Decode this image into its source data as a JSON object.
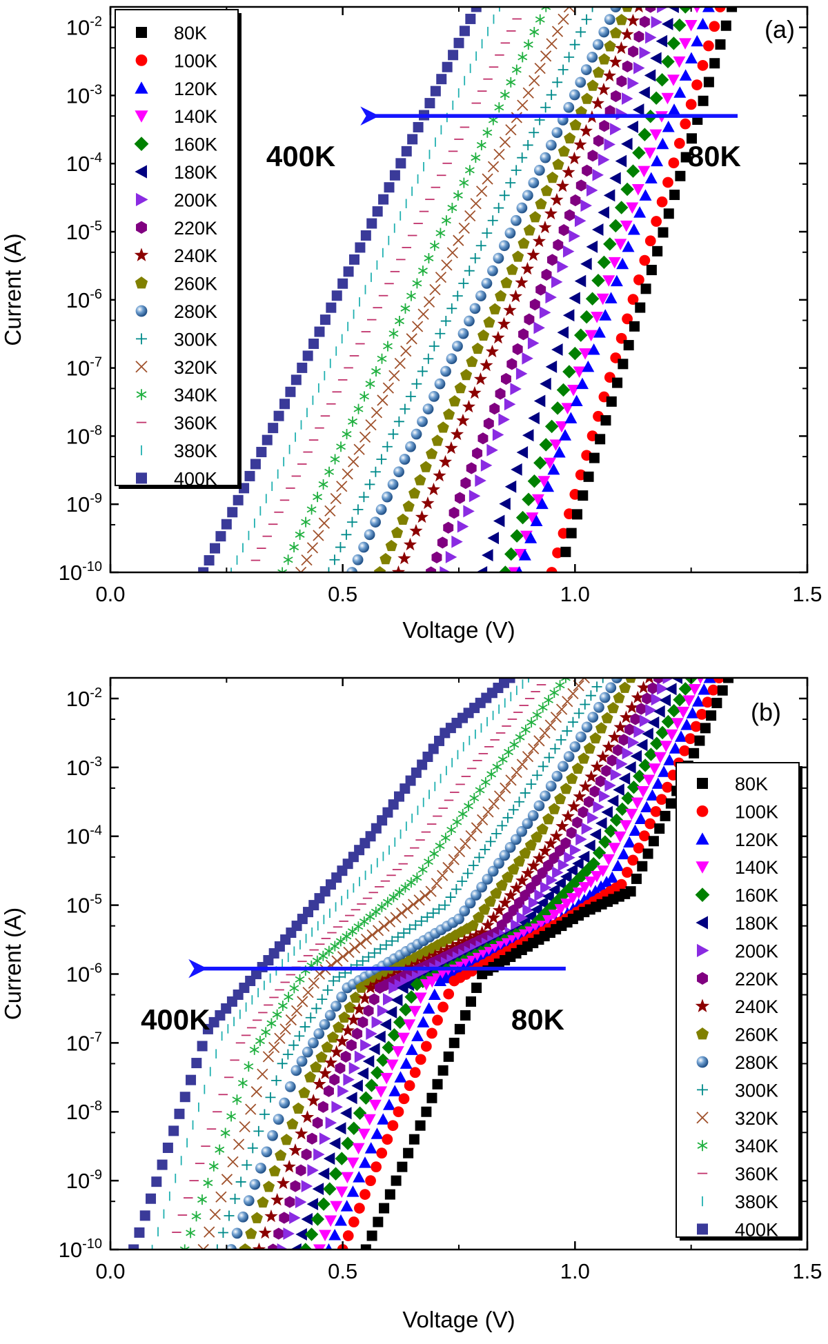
{
  "figure": {
    "legend_entries": [
      "80K",
      "100K",
      "120K",
      "140K",
      "160K",
      "180K",
      "200K",
      "220K",
      "240K",
      "260K",
      "280K",
      "300K",
      "320K",
      "340K",
      "360K",
      "380K",
      "400K"
    ]
  },
  "series_styles": [
    {
      "name": "80K",
      "marker": "square",
      "color": "#000000"
    },
    {
      "name": "100K",
      "marker": "circle",
      "color": "#ff0000"
    },
    {
      "name": "120K",
      "marker": "triangle-up",
      "color": "#0000ff"
    },
    {
      "name": "140K",
      "marker": "triangle-down",
      "color": "#ff00ff"
    },
    {
      "name": "160K",
      "marker": "diamond",
      "color": "#008000"
    },
    {
      "name": "180K",
      "marker": "triangle-left",
      "color": "#000080"
    },
    {
      "name": "200K",
      "marker": "triangle-right",
      "color": "#8a2be2"
    },
    {
      "name": "220K",
      "marker": "hexagon",
      "color": "#800080"
    },
    {
      "name": "240K",
      "marker": "star",
      "color": "#8b0000"
    },
    {
      "name": "260K",
      "marker": "pentagon",
      "color": "#808000"
    },
    {
      "name": "280K",
      "marker": "sphere",
      "color": "#4a7ab0"
    },
    {
      "name": "300K",
      "marker": "plus",
      "color": "#008b8b"
    },
    {
      "name": "320K",
      "marker": "cross",
      "color": "#a0522d"
    },
    {
      "name": "340K",
      "marker": "asterisk",
      "color": "#20b040"
    },
    {
      "name": "360K",
      "marker": "hbar",
      "color": "#c0306a"
    },
    {
      "name": "380K",
      "marker": "vbar",
      "color": "#20b0b0"
    },
    {
      "name": "400K",
      "marker": "square",
      "color": "#3a3a99"
    }
  ],
  "chart_data": [
    {
      "type": "scatter",
      "panel_label": "(a)",
      "xlabel": "Voltage (V)",
      "ylabel": "Current (A)",
      "xlim": [
        0.0,
        1.5
      ],
      "ylim_log10": [
        -10,
        -1.7
      ],
      "y_scale": "log",
      "x_ticks": [
        "0.0",
        "0.5",
        "1.0",
        "1.5"
      ],
      "y_tick_exponents": [
        "-10",
        "-9",
        "-8",
        "-7",
        "-6",
        "-5",
        "-4",
        "-3",
        "-2"
      ],
      "legend_position": "top-left",
      "arrow": {
        "from_v": 1.35,
        "to_v": 0.55,
        "current": 0.0005
      },
      "annotations": [
        {
          "text": "400K",
          "v": 0.41,
          "current": 0.00013
        },
        {
          "text": "80K",
          "v": 1.3,
          "current": 0.00013
        }
      ],
      "series": [
        {
          "name": "80K",
          "x": [
            0.98,
            1.3375
          ],
          "log10_current": [
            -9.7,
            -1.7
          ]
        },
        {
          "name": "100K",
          "x": [
            0.95,
            1.3125
          ],
          "log10_current": [
            -10.0,
            -1.7
          ]
        },
        {
          "name": "120K",
          "x": [
            0.88,
            1.2875
          ],
          "log10_current": [
            -10.0,
            -1.7
          ]
        },
        {
          "name": "140K",
          "x": [
            0.87,
            1.2625
          ],
          "log10_current": [
            -10.0,
            -1.7
          ]
        },
        {
          "name": "160K",
          "x": [
            0.85,
            1.2375
          ],
          "log10_current": [
            -10.0,
            -1.7
          ]
        },
        {
          "name": "180K",
          "x": [
            0.8,
            1.2125
          ],
          "log10_current": [
            -10.0,
            -1.7
          ]
        },
        {
          "name": "200K",
          "x": [
            0.72,
            1.1875
          ],
          "log10_current": [
            -10.0,
            -1.7
          ]
        },
        {
          "name": "220K",
          "x": [
            0.69,
            1.1625
          ],
          "log10_current": [
            -10.0,
            -1.7
          ]
        },
        {
          "name": "240K",
          "x": [
            0.62,
            1.1375
          ],
          "log10_current": [
            -10.0,
            -1.7
          ]
        },
        {
          "name": "260K",
          "x": [
            0.58,
            1.1125
          ],
          "log10_current": [
            -10.0,
            -1.7
          ]
        },
        {
          "name": "280K",
          "x": [
            0.52,
            1.0875
          ],
          "log10_current": [
            -10.0,
            -1.7
          ]
        },
        {
          "name": "300K",
          "x": [
            0.47,
            1.0375
          ],
          "log10_current": [
            -10.0,
            -1.7
          ]
        },
        {
          "name": "320K",
          "x": [
            0.41,
            0.9875
          ],
          "log10_current": [
            -10.0,
            -1.7
          ]
        },
        {
          "name": "340K",
          "x": [
            0.37,
            0.9375
          ],
          "log10_current": [
            -10.0,
            -1.7
          ]
        },
        {
          "name": "360K",
          "x": [
            0.3,
            0.8875
          ],
          "log10_current": [
            -10.0,
            -1.7
          ]
        },
        {
          "name": "380K",
          "x": [
            0.26,
            0.8375
          ],
          "log10_current": [
            -10.0,
            -1.7
          ]
        },
        {
          "name": "400K",
          "x": [
            0.2,
            0.7875
          ],
          "log10_current": [
            -10.0,
            -1.7
          ]
        }
      ]
    },
    {
      "type": "scatter",
      "panel_label": "(b)",
      "xlabel": "Voltage (V)",
      "ylabel": "Current (A)",
      "xlim": [
        0.0,
        1.5
      ],
      "ylim_log10": [
        -10,
        -1.7
      ],
      "y_scale": "log",
      "x_ticks": [
        "0.0",
        "0.5",
        "1.0",
        "1.5"
      ],
      "y_tick_exponents": [
        "-10",
        "-9",
        "-8",
        "-7",
        "-6",
        "-5",
        "-4",
        "-3",
        "-2"
      ],
      "legend_position": "right",
      "arrow": {
        "from_v": 0.98,
        "to_v": 0.18,
        "current": 1.2e-06
      },
      "annotations": [
        {
          "text": "400K",
          "v": 0.14,
          "current": 2.2e-07
        },
        {
          "text": "80K",
          "v": 0.92,
          "current": 2.2e-07
        }
      ],
      "series": [
        {
          "name": "80K",
          "x": [
            0.55,
            0.68,
            0.8,
            1.02,
            1.12,
            1.33
          ],
          "log10_current": [
            -10.0,
            -8.0,
            -6.0,
            -5.1,
            -4.8,
            -1.7
          ]
        },
        {
          "name": "100K",
          "x": [
            0.5,
            0.62,
            0.74,
            0.98,
            1.1,
            1.31
          ],
          "log10_current": [
            -10.0,
            -8.0,
            -6.1,
            -5.2,
            -4.7,
            -1.7
          ]
        },
        {
          "name": "120K",
          "x": [
            0.47,
            0.6,
            0.71,
            0.96,
            1.08,
            1.29
          ],
          "log10_current": [
            -10.0,
            -7.9,
            -6.1,
            -5.25,
            -4.6,
            -1.7
          ]
        },
        {
          "name": "140K",
          "x": [
            0.45,
            0.57,
            0.68,
            0.93,
            1.06,
            1.27
          ],
          "log10_current": [
            -10.0,
            -7.9,
            -6.15,
            -5.3,
            -4.5,
            -1.7
          ]
        },
        {
          "name": "160K",
          "x": [
            0.42,
            0.55,
            0.66,
            0.91,
            1.04,
            1.25
          ],
          "log10_current": [
            -10.0,
            -7.8,
            -6.15,
            -5.3,
            -4.4,
            -1.7
          ]
        },
        {
          "name": "180K",
          "x": [
            0.4,
            0.52,
            0.63,
            0.88,
            1.02,
            1.22
          ],
          "log10_current": [
            -10.0,
            -7.8,
            -6.2,
            -5.35,
            -4.3,
            -1.7
          ]
        },
        {
          "name": "200K",
          "x": [
            0.37,
            0.5,
            0.61,
            0.86,
            1.0,
            1.2
          ],
          "log10_current": [
            -10.0,
            -7.7,
            -6.2,
            -5.4,
            -4.2,
            -1.7
          ]
        },
        {
          "name": "220K",
          "x": [
            0.35,
            0.47,
            0.58,
            0.83,
            0.98,
            1.18
          ],
          "log10_current": [
            -10.0,
            -7.7,
            -6.2,
            -5.4,
            -4.1,
            -1.7
          ]
        },
        {
          "name": "240K",
          "x": [
            0.32,
            0.45,
            0.56,
            0.8,
            0.96,
            1.16
          ],
          "log10_current": [
            -10.0,
            -7.6,
            -6.2,
            -5.4,
            -4.0,
            -1.7
          ]
        },
        {
          "name": "260K",
          "x": [
            0.29,
            0.43,
            0.54,
            0.78,
            0.93,
            1.12
          ],
          "log10_current": [
            -10.0,
            -7.5,
            -6.2,
            -5.3,
            -3.9,
            -1.7
          ]
        },
        {
          "name": "280K",
          "x": [
            0.26,
            0.4,
            0.51,
            0.75,
            0.91,
            1.09
          ],
          "log10_current": [
            -10.0,
            -7.4,
            -6.2,
            -5.2,
            -3.7,
            -1.7
          ]
        },
        {
          "name": "300K",
          "x": [
            0.23,
            0.37,
            0.48,
            0.72,
            0.88,
            1.06
          ],
          "log10_current": [
            -10.0,
            -7.3,
            -6.1,
            -5.0,
            -3.5,
            -1.7
          ]
        },
        {
          "name": "320K",
          "x": [
            0.2,
            0.34,
            0.45,
            0.69,
            0.85,
            1.02
          ],
          "log10_current": [
            -10.0,
            -7.2,
            -6.0,
            -4.8,
            -3.3,
            -1.7
          ]
        },
        {
          "name": "340K",
          "x": [
            0.16,
            0.31,
            0.42,
            0.66,
            0.82,
            0.98
          ],
          "log10_current": [
            -10.0,
            -7.1,
            -5.95,
            -4.6,
            -3.1,
            -1.7
          ]
        },
        {
          "name": "360K",
          "x": [
            0.13,
            0.28,
            0.4,
            0.63,
            0.79,
            0.94
          ],
          "log10_current": [
            -10.0,
            -7.0,
            -5.9,
            -4.4,
            -2.9,
            -1.7
          ]
        },
        {
          "name": "380K",
          "x": [
            0.09,
            0.24,
            0.37,
            0.6,
            0.76,
            0.9
          ],
          "log10_current": [
            -10.0,
            -6.9,
            -5.85,
            -4.2,
            -2.7,
            -1.7
          ]
        },
        {
          "name": "400K",
          "x": [
            0.05,
            0.21,
            0.34,
            0.56,
            0.72,
            0.86
          ],
          "log10_current": [
            -10.0,
            -6.8,
            -5.8,
            -4.0,
            -2.5,
            -1.7
          ]
        }
      ]
    }
  ]
}
